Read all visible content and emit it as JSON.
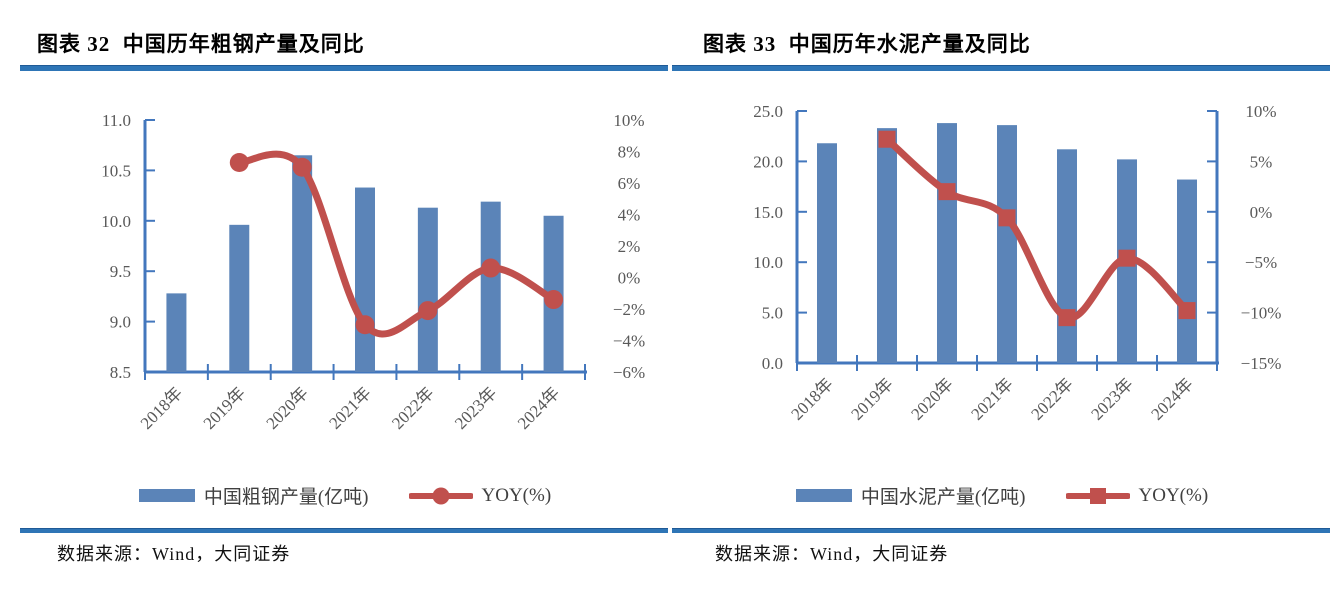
{
  "page": {
    "background": "#ffffff",
    "figures": [
      {
        "id": "steel",
        "title": "图表 32  中国历年粗钢产量及同比",
        "source": "数据来源：Wind，大同证券"
      },
      {
        "id": "cement",
        "title": "图表 33  中国历年水泥产量及同比",
        "source": "数据来源：Wind，大同证券"
      }
    ],
    "colors": {
      "divider_blue": "#2e75b6",
      "axis_blue": "#4377bd",
      "bar_blue": "#5b84b8",
      "line_red": "#c0504d",
      "tick_text": "#595959",
      "legend_text": "#404040"
    }
  },
  "chart_data": [
    {
      "type": "combo_bar_line",
      "title": "图表 32  中国历年粗钢产量及同比",
      "categories": [
        "2018年",
        "2019年",
        "2020年",
        "2021年",
        "2022年",
        "2023年",
        "2024年"
      ],
      "series": [
        {
          "name": "中国粗钢产量(亿吨)",
          "type": "bar",
          "axis": "left",
          "values": [
            9.28,
            9.96,
            10.65,
            10.33,
            10.13,
            10.19,
            10.05
          ],
          "color": "#5b84b8"
        },
        {
          "name": "YOY(%)",
          "type": "line",
          "axis": "right",
          "marker": "circle",
          "smooth": true,
          "values": [
            null,
            7.3,
            7.0,
            -3.0,
            -2.1,
            0.6,
            -1.4
          ],
          "color": "#c0504d"
        }
      ],
      "left_axis": {
        "min": 8.5,
        "max": 11.0,
        "step": 0.5,
        "labels": [
          "8.5",
          "9.0",
          "9.5",
          "10.0",
          "10.5",
          "11.0"
        ],
        "show_line": true
      },
      "right_axis": {
        "min": -6,
        "max": 10,
        "step": 2,
        "labels": [
          "−6%",
          "−4%",
          "−2%",
          "0%",
          "2%",
          "4%",
          "6%",
          "8%",
          "10%"
        ],
        "show_line": false
      },
      "grid": "off",
      "legend_position": "bottom",
      "xlabel": "",
      "ylabel": ""
    },
    {
      "type": "combo_bar_line",
      "title": "图表 33  中国历年水泥产量及同比",
      "categories": [
        "2018年",
        "2019年",
        "2020年",
        "2021年",
        "2022年",
        "2023年",
        "2024年"
      ],
      "series": [
        {
          "name": "中国水泥产量(亿吨)",
          "type": "bar",
          "axis": "left",
          "values": [
            21.8,
            23.3,
            23.8,
            23.6,
            21.2,
            20.2,
            18.2
          ],
          "color": "#5b84b8"
        },
        {
          "name": "YOY(%)",
          "type": "line",
          "axis": "right",
          "marker": "square",
          "smooth": true,
          "values": [
            null,
            7.2,
            2.0,
            -0.6,
            -10.5,
            -4.6,
            -9.8
          ],
          "color": "#c0504d"
        }
      ],
      "left_axis": {
        "min": 0,
        "max": 25,
        "step": 5,
        "labels": [
          "0.0",
          "5.0",
          "10.0",
          "15.0",
          "20.0",
          "25.0"
        ],
        "show_line": true
      },
      "right_axis": {
        "min": -15,
        "max": 10,
        "step": 5,
        "labels": [
          "−15%",
          "−10%",
          "−5%",
          "0%",
          "5%",
          "10%"
        ],
        "show_line": true
      },
      "grid": "off",
      "legend_position": "bottom",
      "xlabel": "",
      "ylabel": ""
    }
  ]
}
